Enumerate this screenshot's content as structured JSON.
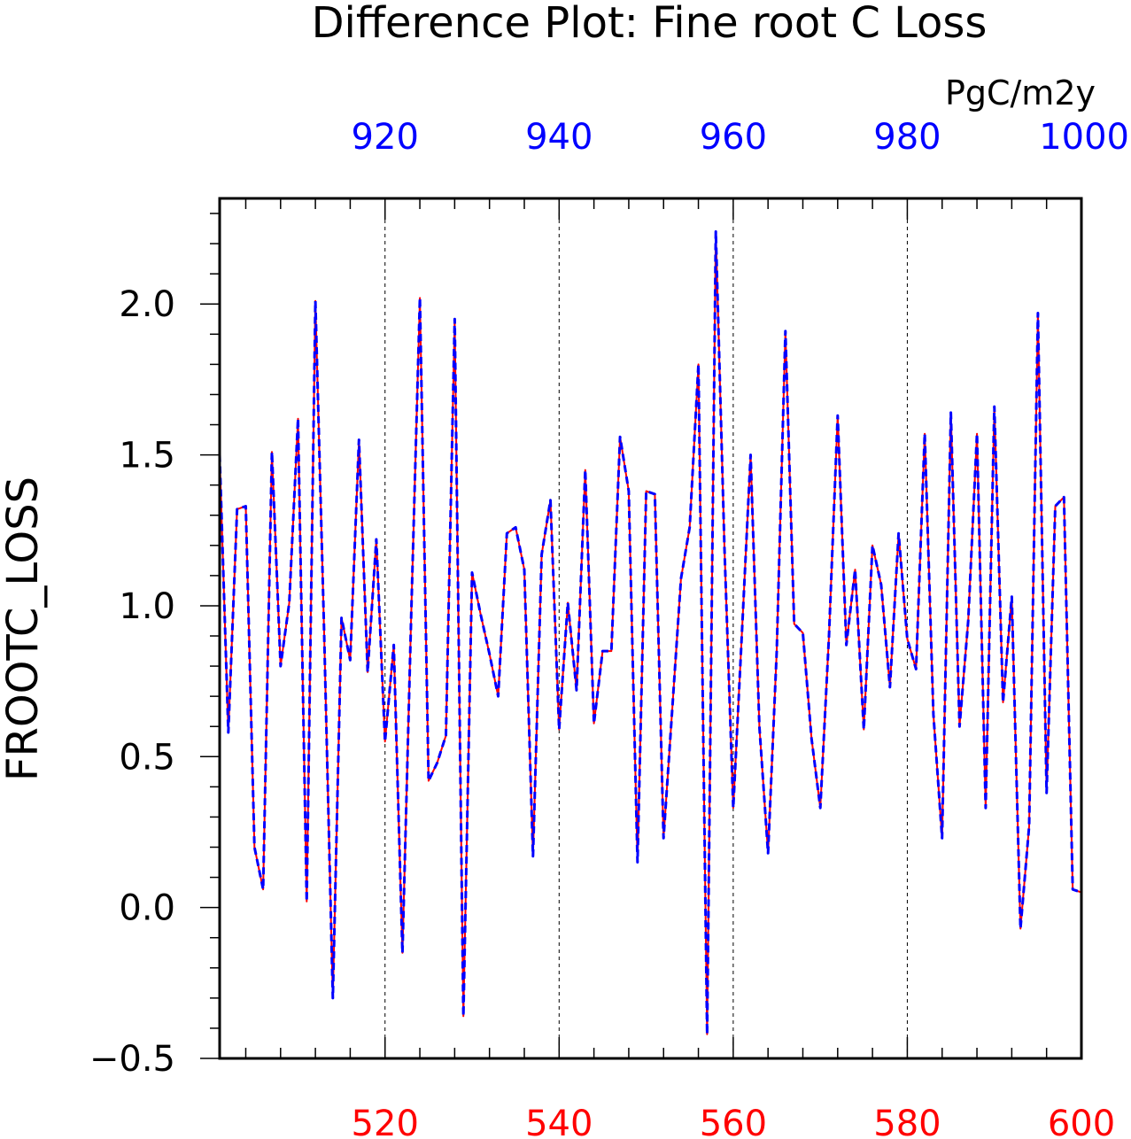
{
  "chart_data": {
    "type": "line",
    "title": "Difference Plot: Fine root C Loss",
    "units": "PgC/m2y",
    "ylabel": "FROOTC_LOSS",
    "ylim": [
      -0.5,
      2.35
    ],
    "yticks": [
      -0.5,
      0.0,
      0.5,
      1.0,
      1.5,
      2.0
    ],
    "ytick_labels": [
      "−0.5",
      "0.0",
      "0.5",
      "1.0",
      "1.5",
      "2.0"
    ],
    "grid": "vertical dashed lines at labeled x ticks",
    "x_bottom": {
      "range": [
        501,
        600
      ],
      "ticks": [
        520,
        540,
        560,
        580,
        600
      ],
      "tick_labels": [
        "520",
        "540",
        "560",
        "580",
        "600"
      ],
      "color": "#ff0000"
    },
    "x_top": {
      "range": [
        901,
        1000
      ],
      "ticks": [
        920,
        940,
        960,
        980,
        1000
      ],
      "tick_labels": [
        "920",
        "940",
        "960",
        "980",
        "1000"
      ],
      "color": "#0000ff"
    },
    "series": [
      {
        "axis": "bottom",
        "color": "#ff0000",
        "style": "solid",
        "x": [
          501,
          502,
          503,
          504,
          505,
          506,
          507,
          508,
          509,
          510,
          511,
          512,
          513,
          514,
          515,
          516,
          517,
          518,
          519,
          520,
          521,
          522,
          523,
          524,
          525,
          526,
          527,
          528,
          529,
          530,
          531,
          532,
          533,
          534,
          535,
          536,
          537,
          538,
          539,
          540,
          541,
          542,
          543,
          544,
          545,
          546,
          547,
          548,
          549,
          550,
          551,
          552,
          553,
          554,
          555,
          556,
          557,
          558,
          559,
          560,
          561,
          562,
          563,
          564,
          565,
          566,
          567,
          568,
          569,
          570,
          571,
          572,
          573,
          574,
          575,
          576,
          577,
          578,
          579,
          580,
          581,
          582,
          583,
          584,
          585,
          586,
          587,
          588,
          589,
          590,
          591,
          592,
          593,
          594,
          595,
          596,
          597,
          598,
          599,
          600
        ],
        "values": [
          1.5,
          0.58,
          1.32,
          1.33,
          0.2,
          0.06,
          1.51,
          0.8,
          1.01,
          1.62,
          0.02,
          2.01,
          0.92,
          -0.3,
          0.96,
          0.82,
          1.55,
          0.78,
          1.22,
          0.55,
          0.87,
          -0.15,
          0.96,
          2.02,
          0.42,
          0.48,
          0.57,
          1.95,
          -0.36,
          1.11,
          0.97,
          0.84,
          0.7,
          1.24,
          1.26,
          1.12,
          0.17,
          1.17,
          1.35,
          0.59,
          1.01,
          0.72,
          1.45,
          0.61,
          0.85,
          0.85,
          1.56,
          1.38,
          0.15,
          1.38,
          1.37,
          0.23,
          0.66,
          1.09,
          1.26,
          1.8,
          -0.42,
          2.24,
          1.19,
          0.33,
          0.91,
          1.5,
          0.6,
          0.18,
          0.85,
          1.91,
          0.94,
          0.91,
          0.56,
          0.33,
          0.9,
          1.63,
          0.87,
          1.12,
          0.59,
          1.2,
          1.07,
          0.73,
          1.24,
          0.89,
          0.79,
          1.57,
          0.64,
          0.23,
          1.64,
          0.6,
          0.95,
          1.57,
          0.33,
          1.66,
          0.68,
          1.03,
          -0.07,
          0.27,
          1.97,
          0.38,
          1.33,
          1.36,
          0.06,
          0.05
        ]
      },
      {
        "axis": "top",
        "color": "#0000ff",
        "style": "dashed",
        "x": [
          901,
          902,
          903,
          904,
          905,
          906,
          907,
          908,
          909,
          910,
          911,
          912,
          913,
          914,
          915,
          916,
          917,
          918,
          919,
          920,
          921,
          922,
          923,
          924,
          925,
          926,
          927,
          928,
          929,
          930,
          931,
          932,
          933,
          934,
          935,
          936,
          937,
          938,
          939,
          940,
          941,
          942,
          943,
          944,
          945,
          946,
          947,
          948,
          949,
          950,
          951,
          952,
          953,
          954,
          955,
          956,
          957,
          958,
          959,
          960,
          961,
          962,
          963,
          964,
          965,
          966,
          967,
          968,
          969,
          970,
          971,
          972,
          973,
          974,
          975,
          976,
          977,
          978,
          979,
          980,
          981,
          982,
          983,
          984,
          985,
          986,
          987,
          988,
          989,
          990,
          991,
          992,
          993,
          994,
          995,
          996,
          997,
          998,
          999,
          1000
        ],
        "values": [
          1.5,
          0.58,
          1.32,
          1.33,
          0.2,
          0.06,
          1.51,
          0.8,
          1.01,
          1.62,
          0.02,
          2.01,
          0.92,
          -0.3,
          0.96,
          0.82,
          1.55,
          0.78,
          1.22,
          0.55,
          0.87,
          -0.15,
          0.96,
          2.02,
          0.42,
          0.48,
          0.57,
          1.95,
          -0.36,
          1.11,
          0.97,
          0.84,
          0.7,
          1.24,
          1.26,
          1.12,
          0.17,
          1.17,
          1.35,
          0.59,
          1.01,
          0.72,
          1.45,
          0.61,
          0.85,
          0.85,
          1.56,
          1.38,
          0.15,
          1.38,
          1.37,
          0.23,
          0.66,
          1.09,
          1.26,
          1.8,
          -0.42,
          2.24,
          1.19,
          0.33,
          0.91,
          1.5,
          0.6,
          0.18,
          0.85,
          1.91,
          0.94,
          0.91,
          0.56,
          0.33,
          0.9,
          1.63,
          0.87,
          1.12,
          0.59,
          1.2,
          1.07,
          0.73,
          1.24,
          0.89,
          0.79,
          1.57,
          0.64,
          0.23,
          1.64,
          0.6,
          0.95,
          1.57,
          0.33,
          1.66,
          0.68,
          1.03,
          -0.07,
          0.27,
          1.97,
          0.38,
          1.33,
          1.36,
          0.06,
          0.05
        ]
      }
    ]
  }
}
